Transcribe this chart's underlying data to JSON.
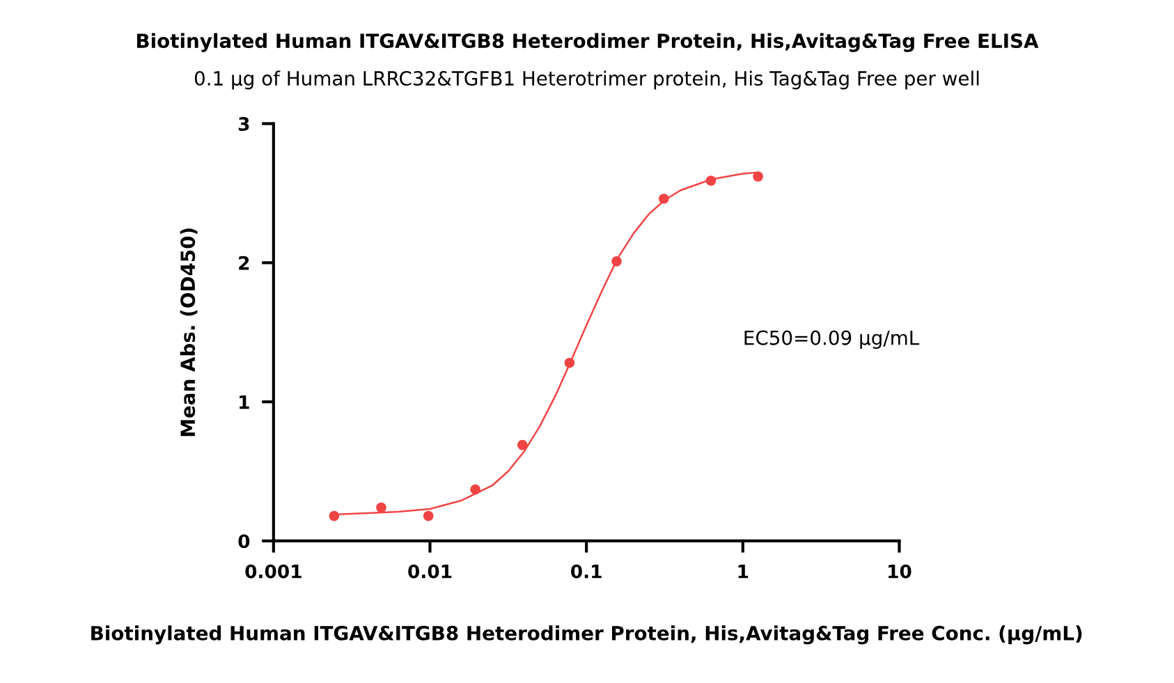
{
  "chart_data": {
    "type": "scatter",
    "title": "Biotinylated Human ITGAV&ITGB8 Heterodimer Protein, His,Avitag&Tag Free ELISA",
    "subtitle": "0.1 μg of Human LRRC32&TGFB1 Heterotrimer protein, His Tag&Tag Free per well",
    "xlabel": "Biotinylated Human ITGAV&ITGB8 Heterodimer Protein, His,Avitag&Tag Free Conc. (μg/mL)",
    "ylabel": "Mean Abs. (OD450)",
    "annotations": [
      "EC50=0.09 μg/mL"
    ],
    "log": "x",
    "xlim": [
      0.001,
      10
    ],
    "xticks": [
      0.001,
      0.01,
      0.1,
      1,
      10
    ],
    "ylim": [
      0,
      3
    ],
    "yticks": [
      0,
      1,
      2,
      3
    ],
    "grid": false,
    "legend": false,
    "series": [
      {
        "color": "#f04444",
        "marker": "circle",
        "x": [
          0.00244,
          0.00488,
          0.00977,
          0.0195,
          0.039,
          0.078,
          0.156,
          0.3125,
          0.625,
          1.25
        ],
        "values": [
          0.18,
          0.24,
          0.18,
          0.37,
          0.69,
          1.28,
          2.01,
          2.46,
          2.59,
          2.62
        ]
      },
      {
        "type": "line",
        "color": "#f04444",
        "marker": "none",
        "line_style": "solid",
        "x": [
          0.00244,
          0.00398,
          0.00631,
          0.01,
          0.0158,
          0.0251,
          0.0316,
          0.0398,
          0.0501,
          0.0631,
          0.0794,
          0.1,
          0.126,
          0.158,
          0.2,
          0.251,
          0.316,
          0.398,
          0.631,
          1,
          1.259
        ],
        "values": [
          0.19,
          0.2,
          0.21,
          0.23,
          0.29,
          0.4,
          0.5,
          0.64,
          0.82,
          1.04,
          1.29,
          1.55,
          1.8,
          2.03,
          2.21,
          2.35,
          2.45,
          2.52,
          2.6,
          2.64,
          2.65
        ]
      }
    ]
  }
}
